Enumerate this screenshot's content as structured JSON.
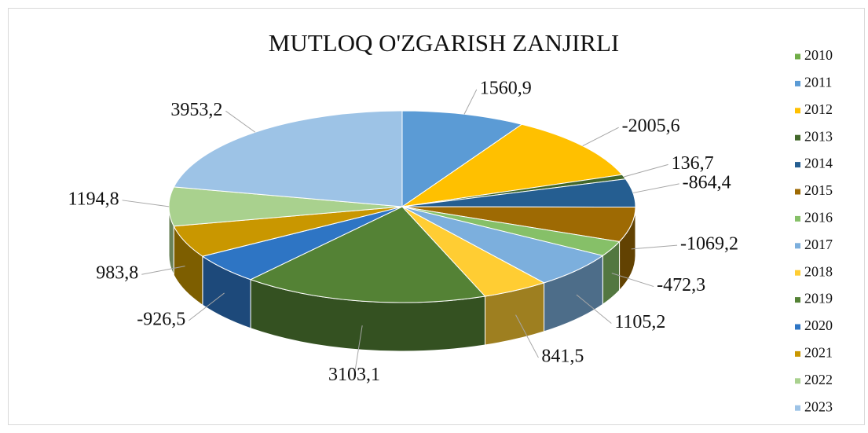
{
  "chart_data": {
    "type": "pie",
    "title": "MUTLOQ O'ZGARISH ZANJIRLI",
    "categories": [
      "2010",
      "2011",
      "2012",
      "2013",
      "2014",
      "2015",
      "2016",
      "2017",
      "2018",
      "2019",
      "2020",
      "2021",
      "2022",
      "2023"
    ],
    "values": [
      null,
      1560.9,
      -2005.6,
      136.7,
      -864.4,
      -1069.2,
      -472.3,
      1105.2,
      841.5,
      3103.1,
      -926.5,
      983.8,
      1194.8,
      3953.2
    ],
    "value_labels": [
      null,
      "1560,9",
      "-2005,6",
      "136,7",
      "-864,4",
      "-1069,2",
      "-472,3",
      "1105,2",
      "841,5",
      "3103,1",
      "-926,5",
      "983,8",
      "1194,8",
      "3953,2"
    ],
    "colors": [
      "#70ad47",
      "#5b9bd5",
      "#ffc000",
      "#43682b",
      "#255e91",
      "#9e6a03",
      "#86c068",
      "#7cafdd",
      "#ffcd33",
      "#548235",
      "#2e75c4",
      "#c99700",
      "#a9d18e",
      "#9dc3e6"
    ],
    "legend": "right"
  }
}
